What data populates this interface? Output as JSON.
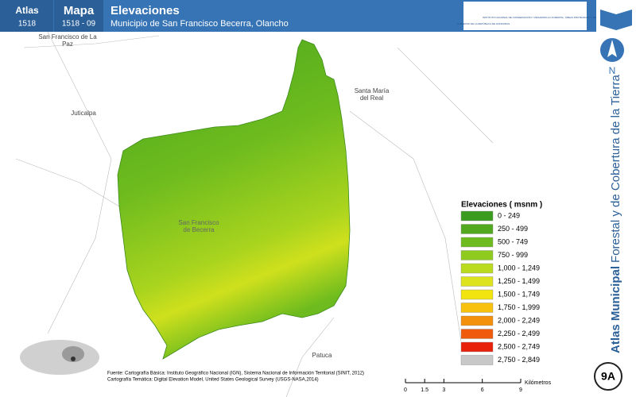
{
  "header": {
    "atlas_label": "Atlas",
    "atlas_number": "1518",
    "map_label": "Mapa",
    "map_number": "1518 - 09",
    "title": "Elevaciones",
    "subtitle": "Municipio de San Francisco Becerra, Olancho",
    "logo_left": "GOBIERNO DE LA REPÚBLICA DE HONDURAS",
    "logo_right": "INSTITUTO NACIONAL DE CONSERVACIÓN Y DESARROLLO FORESTAL, ÁREAS PROTEGIDAS Y VIDA SILVESTRE"
  },
  "places": [
    {
      "label": "San Francisco de La Paz"
    },
    {
      "label": "Juticalpa"
    },
    {
      "label": "Santa María del Real"
    },
    {
      "label": "San Francisco de Becerra"
    },
    {
      "label": "Patuca"
    }
  ],
  "legend": {
    "title": "Elevaciones ( msnm )",
    "items": [
      {
        "label": "0 - 249",
        "color": "#3a9b1f"
      },
      {
        "label": "250 - 499",
        "color": "#52a91f"
      },
      {
        "label": "500 - 749",
        "color": "#6dbb1e"
      },
      {
        "label": "750 - 999",
        "color": "#8fcb1f"
      },
      {
        "label": "1,000 - 1,249",
        "color": "#bbdc1e"
      },
      {
        "label": "1,250 - 1,499",
        "color": "#dde31d"
      },
      {
        "label": "1,500 - 1,749",
        "color": "#f2e40f"
      },
      {
        "label": "1,750 - 1,999",
        "color": "#f7c10e"
      },
      {
        "label": "2,000 - 2,249",
        "color": "#f3900c"
      },
      {
        "label": "2,250 - 2,499",
        "color": "#ef5a0c"
      },
      {
        "label": "2,500 - 2,749",
        "color": "#e8210b"
      },
      {
        "label": "2,750 - 2,849",
        "color": "#c8c8c8"
      }
    ]
  },
  "source": {
    "lines": [
      "Fuente: Cartografía Básica: Instituto Geográfico Nacional (IGN), Sistema Nacional de Información Territorial (SINIT, 2012)",
      "Cartografía Temática: Digital Elevation Model, United States Geological Survey (USGS-NASA,2014)"
    ]
  },
  "scale": {
    "ticks": [
      0,
      1.5,
      3,
      6,
      9
    ],
    "unit": "Kilómetros"
  },
  "sidebar": {
    "north": "N",
    "title_bold": "Atlas Municipal",
    "title_rest": "Forestal y de Cobertura de la Tierra",
    "page": "9A"
  }
}
